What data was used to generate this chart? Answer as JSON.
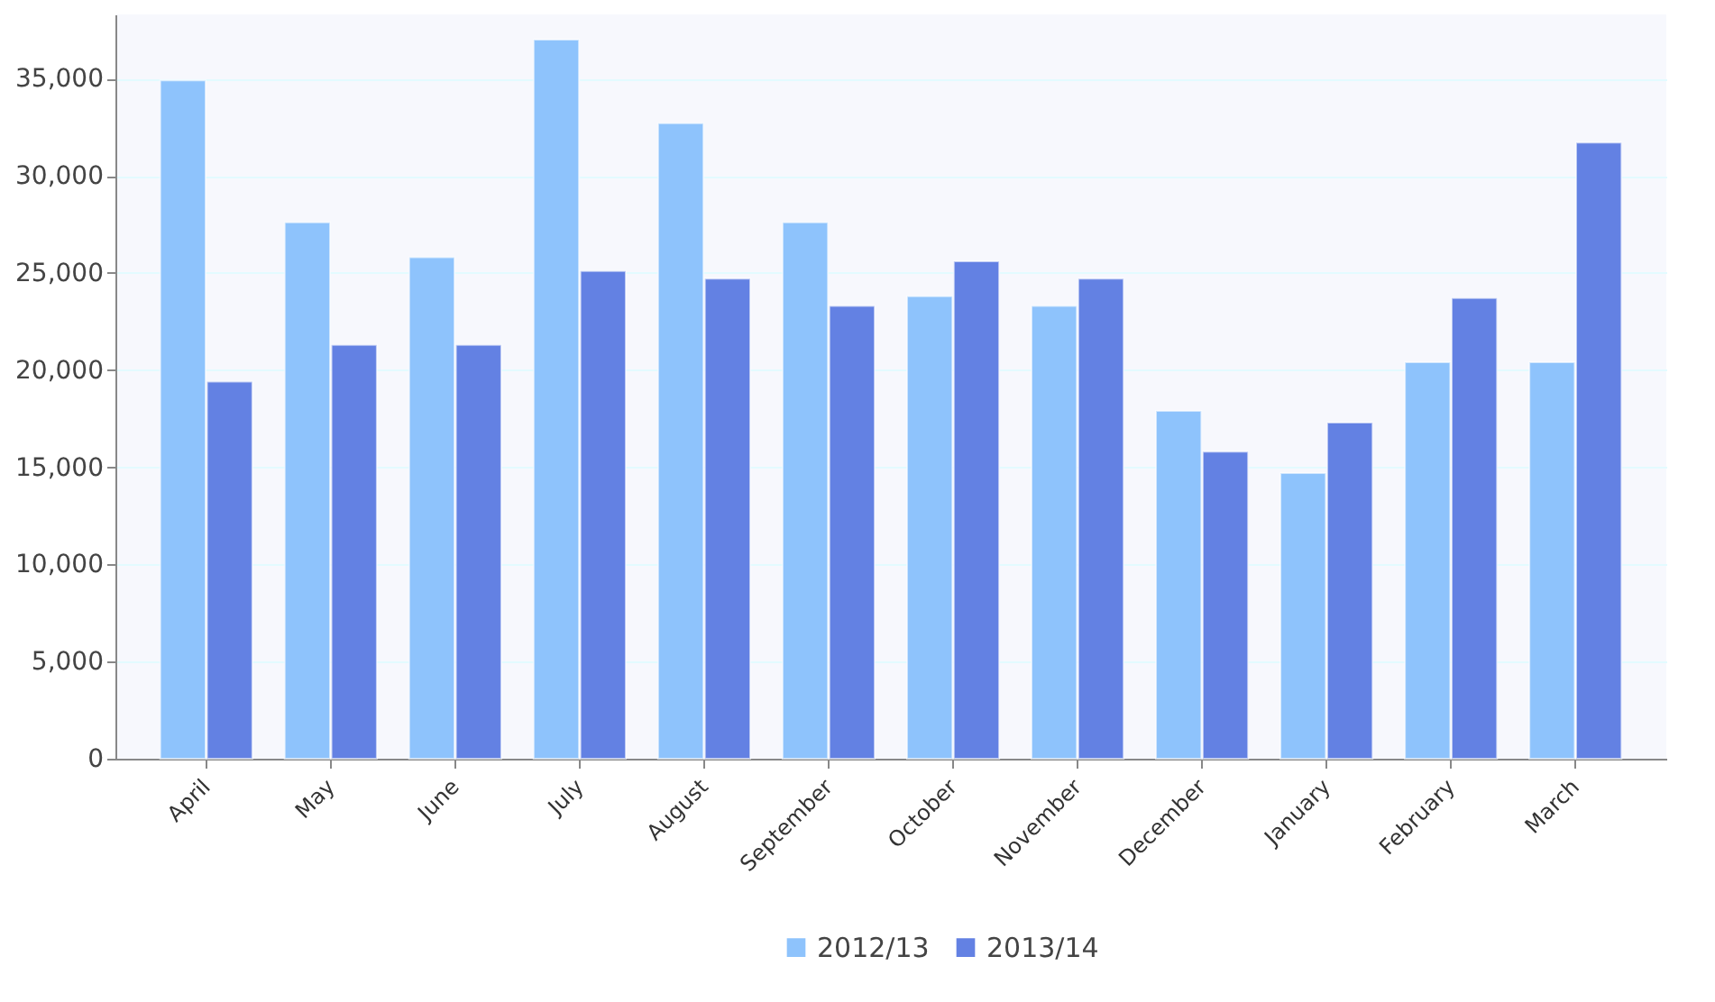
{
  "chart_data": {
    "type": "bar",
    "categories": [
      "April",
      "May",
      "June",
      "July",
      "August",
      "September",
      "October",
      "November",
      "December",
      "January",
      "February",
      "March"
    ],
    "series": [
      {
        "name": "2012/13",
        "color": "#8ec3fc",
        "values": [
          34900,
          27600,
          25800,
          37000,
          32700,
          27600,
          23800,
          23300,
          17900,
          14700,
          20400,
          20400
        ]
      },
      {
        "name": "2013/14",
        "color": "#6381e3",
        "values": [
          19400,
          21300,
          21300,
          25100,
          24700,
          23300,
          25600,
          24700,
          15800,
          17300,
          23700,
          31700
        ]
      }
    ],
    "ylim": [
      0,
      38300
    ],
    "yticks": [
      0,
      {
        "value": 5000,
        "label": "5,000"
      },
      {
        "value": 10000,
        "label": "10,000"
      },
      {
        "value": 15000,
        "label": "15,000"
      },
      {
        "value": 20000,
        "label": "20,000"
      },
      {
        "value": 25000,
        "label": "25,000"
      },
      {
        "value": 30000,
        "label": "30,000"
      },
      {
        "value": 35000,
        "label": "35,000"
      }
    ],
    "grid": "y",
    "legend": "bottom"
  }
}
